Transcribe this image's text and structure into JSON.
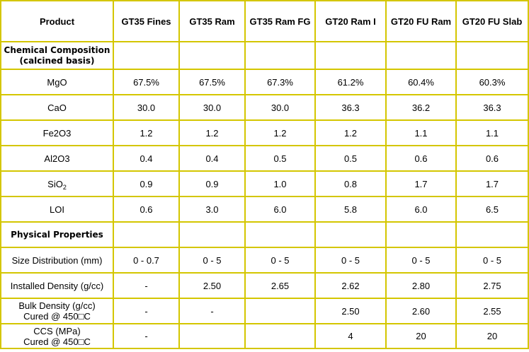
{
  "header": {
    "product": "Product",
    "columns": [
      "GT35 Fines",
      "GT35 Ram",
      "GT35 Ram FG",
      "GT20 Ram I",
      "GT20 FU Ram",
      "GT20 FU Slab"
    ]
  },
  "sections": {
    "chemical": {
      "line1": "Chemical Composition",
      "line2": "(calcined basis)"
    },
    "physical": {
      "title": "Physical Properties"
    }
  },
  "chemical_rows": [
    {
      "label": "MgO",
      "values": [
        "67.5%",
        "67.5%",
        "67.3%",
        "61.2%",
        "60.4%",
        "60.3%"
      ]
    },
    {
      "label": "CaO",
      "values": [
        "30.0",
        "30.0",
        "30.0",
        "36.3",
        "36.2",
        "36.3"
      ]
    },
    {
      "label": "Fe2O3",
      "values": [
        "1.2",
        "1.2",
        "1.2",
        "1.2",
        "1.1",
        "1.1"
      ]
    },
    {
      "label": "Al2O3",
      "values": [
        "0.4",
        "0.4",
        "0.5",
        "0.5",
        "0.6",
        "0.6"
      ]
    },
    {
      "label_base": "SiO",
      "label_sub": "2",
      "values": [
        "0.9",
        "0.9",
        "1.0",
        "0.8",
        "1.7",
        "1.7"
      ]
    },
    {
      "label": "LOI",
      "values": [
        "0.6",
        "3.0",
        "6.0",
        "5.8",
        "6.0",
        "6.5"
      ]
    }
  ],
  "physical_rows": [
    {
      "label": "Size Distribution (mm)",
      "values": [
        "0 - 0.7",
        "0 - 5",
        "0 - 5",
        "0 - 5",
        "0 - 5",
        "0 - 5"
      ]
    },
    {
      "label": "Installed Density (g/cc)",
      "values": [
        "-",
        "2.50",
        "2.65",
        "2.62",
        "2.80",
        "2.75"
      ]
    },
    {
      "label_line1": "Bulk Density  (g/cc)",
      "label_line2": "Cured @ 450□C",
      "values": [
        "-",
        "-",
        "",
        "2.50",
        "2.60",
        "2.55"
      ]
    },
    {
      "label_line1": "CCS  (MPa)",
      "label_line2": "Cured @ 450□C",
      "values": [
        "-",
        "",
        "",
        "4",
        "20",
        "20"
      ]
    }
  ],
  "colors": {
    "border": "#d4c600",
    "background": "#ffffff",
    "text": "#000000"
  }
}
